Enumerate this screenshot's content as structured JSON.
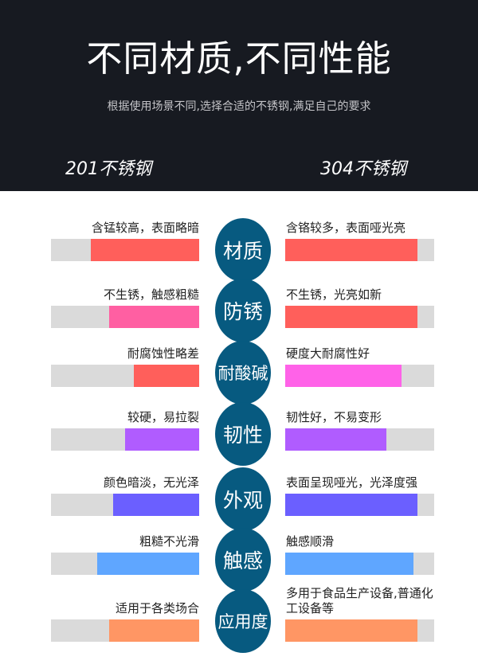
{
  "header": {
    "title": "不同材质,不同性能",
    "subtitle": "根据使用场景不同,选择合适的不锈钢,满足自己的要求",
    "left_label": "201不锈钢",
    "right_label": "304不锈钢"
  },
  "colors": {
    "header_bg": "#171a21",
    "circle": "#075a80",
    "track": "#dadada"
  },
  "rows": [
    {
      "category": "材质",
      "left_text": "含锰较高，表面略暗",
      "left_level": 0.73,
      "left_color": "#ff5f5b",
      "right_text": "含铬较多，表面哑光亮",
      "right_level": 0.89,
      "right_color": "#ff5f5b"
    },
    {
      "category": "防锈",
      "left_text": "不生锈，触感粗糙",
      "left_level": 0.61,
      "left_color": "#ff5fa2",
      "right_text": "不生锈，光亮如新",
      "right_level": 0.89,
      "right_color": "#ff5f5b"
    },
    {
      "category": "耐酸碱",
      "left_text": "耐腐蚀性略差",
      "left_level": 0.44,
      "left_color": "#ff5f5b",
      "right_text": "硬度大耐腐性好",
      "right_level": 0.78,
      "right_color": "#ff62e8"
    },
    {
      "category": "韧性",
      "left_text": "较硬，易拉裂",
      "left_level": 0.5,
      "left_color": "#b05cff",
      "right_text": "韧性好，不易变形",
      "right_level": 0.68,
      "right_color": "#b05cff"
    },
    {
      "category": "外观",
      "left_text": "颜色暗淡，无光泽",
      "left_level": 0.58,
      "left_color": "#6b5fff",
      "right_text": "表面呈现哑光，光泽度强",
      "right_level": 0.89,
      "right_color": "#6b5fff"
    },
    {
      "category": "触感",
      "left_text": "粗糙不光滑",
      "left_level": 0.69,
      "left_color": "#5fa6ff",
      "right_text": "触感顺滑",
      "right_level": 0.86,
      "right_color": "#5fa6ff"
    },
    {
      "category": "应用度",
      "left_text": "适用于各类场合",
      "left_level": 0.61,
      "left_color": "#ff9664",
      "right_text": "多用于食品生产设备,普通化工设备等",
      "right_level": 0.89,
      "right_color": "#ff9664"
    }
  ]
}
